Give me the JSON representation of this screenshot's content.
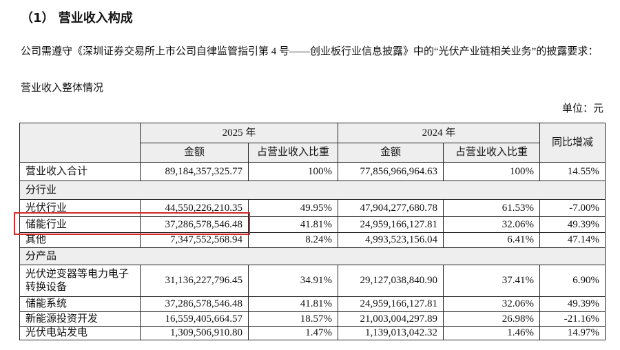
{
  "header": {
    "title": "（1） 营业收入构成"
  },
  "paragraphs": [
    "公司需遵守《深圳证券交易所上市公司自律监管指引第 4 号——创业板行业信息披露》中的“光伏产业链相关业务”的披露要求：",
    "营业收入整体情况"
  ],
  "unit": "单位：元",
  "table": {
    "years": [
      "2025 年",
      "2024 年"
    ],
    "subheads": [
      "金额",
      "占营业收入比重",
      "金额",
      "占营业收入比重"
    ],
    "change": "同比增减",
    "rows": [
      {
        "cells": [
          "营业收入合计",
          "89,184,357,325.77",
          "100%",
          "77,856,966,964.63",
          "100%",
          "14.55%"
        ]
      },
      {
        "section": "分行业"
      },
      {
        "cells": [
          "光伏行业",
          "44,550,226,210.35",
          "49.95%",
          "47,904,277,680.78",
          "61.53%",
          "-7.00%"
        ]
      },
      {
        "cells": [
          "储能行业",
          "37,286,578,546.48",
          "41.81%",
          "24,959,166,127.81",
          "32.06%",
          "49.39%"
        ]
      },
      {
        "cells": [
          "其他",
          "7,347,552,568.94",
          "8.24%",
          "4,993,523,156.04",
          "6.41%",
          "47.14%"
        ]
      },
      {
        "section": "分产品"
      },
      {
        "cells": [
          "光伏逆变器等电力电子转换设备",
          "31,136,227,796.45",
          "34.91%",
          "29,127,038,840.90",
          "37.41%",
          "6.90%"
        ]
      },
      {
        "cells": [
          "储能系统",
          "37,286,578,546.48",
          "41.81%",
          "24,959,166,127.81",
          "32.06%",
          "49.39%"
        ]
      },
      {
        "cells": [
          "新能源投资开发",
          "16,559,405,664.57",
          "18.57%",
          "21,003,004,297.89",
          "26.98%",
          "-21.16%"
        ]
      },
      {
        "cells": [
          "光伏电站发电",
          "1,309,506,910.80",
          "1.47%",
          "1,139,013,042.32",
          "1.46%",
          "14.97%"
        ]
      }
    ]
  }
}
